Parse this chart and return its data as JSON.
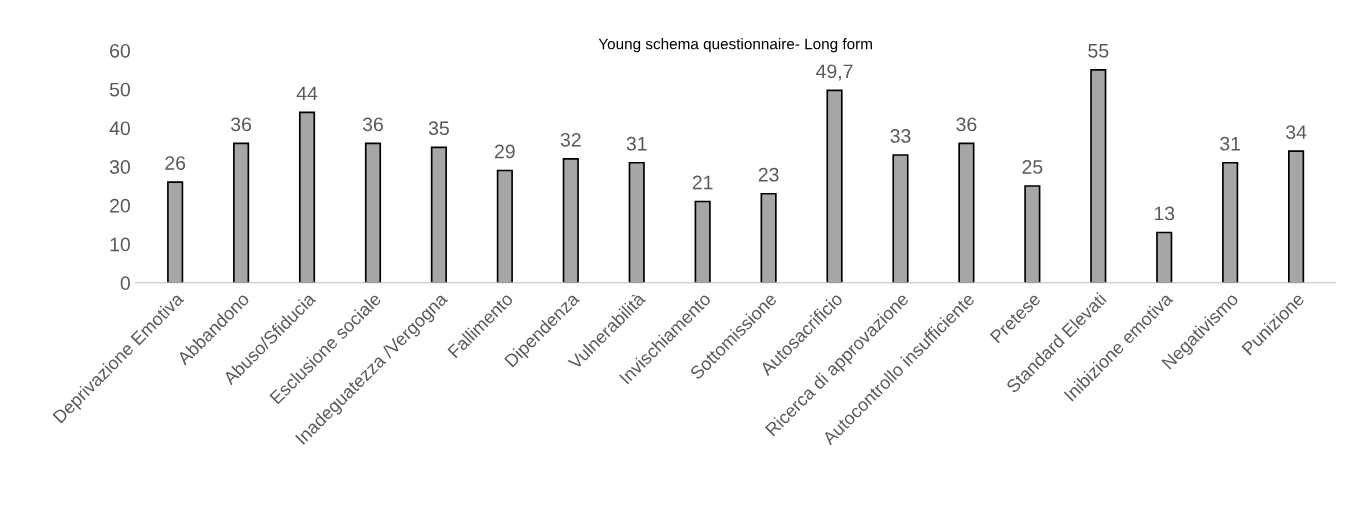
{
  "chart_data": {
    "type": "bar",
    "title": "Young schema questionnaire- Long form",
    "categories": [
      "Deprivazione Emotiva",
      "Abbandono",
      "Abuso/Sfiducia",
      "Esclusione sociale",
      "Inadeguatezza /Vergogna",
      "Fallimento",
      "Dipendenza",
      "Vulnerabilità",
      "Invischiamento",
      "Sottomissione",
      "Autosacrificio",
      "Ricerca di approvazione",
      "Autocontrollo insufficiente",
      "Pretese",
      "Standard Elevati",
      "Inibizione emotiva",
      "Negativismo",
      "Punizione"
    ],
    "values": [
      26,
      36,
      44,
      36,
      35,
      29,
      32,
      31,
      21,
      23,
      49.7,
      33,
      36,
      25,
      55,
      13,
      31,
      34
    ],
    "value_labels": [
      "26",
      "36",
      "44",
      "36",
      "35",
      "29",
      "32",
      "31",
      "21",
      "23",
      "49,7",
      "33",
      "36",
      "25",
      "55",
      "13",
      "31",
      "34"
    ],
    "color": "#a6a6a6",
    "ylim": [
      0,
      60
    ],
    "yticks": [
      0,
      10,
      20,
      30,
      40,
      50,
      60
    ],
    "grid": false,
    "legend": false
  }
}
